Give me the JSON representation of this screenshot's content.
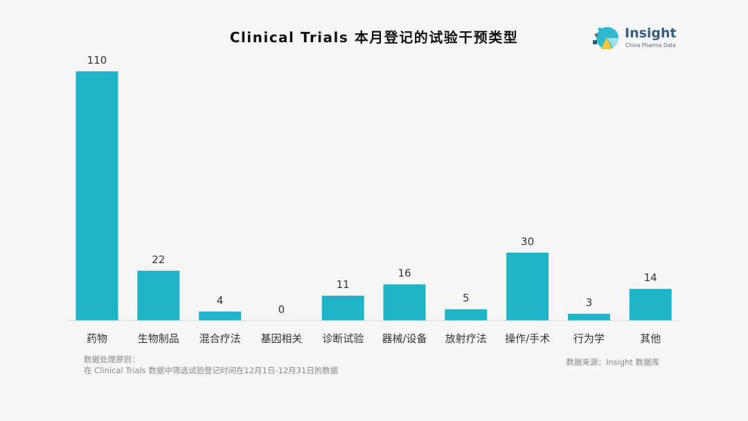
{
  "chart_data": {
    "type": "bar",
    "title": "Clinical Trials 本月登记的试验干预类型",
    "categories": [
      "药物",
      "生物制品",
      "混合疗法",
      "基因相关",
      "诊断试验",
      "器械/设备",
      "放射疗法",
      "操作/手术",
      "行为学",
      "其他"
    ],
    "values": [
      110,
      22,
      4,
      0,
      11,
      16,
      5,
      30,
      3,
      14
    ],
    "xlabel": "",
    "ylabel": "",
    "ylim": [
      0,
      110
    ],
    "grid": false,
    "legend": "none",
    "bar_color": "#1fb5c9"
  },
  "logo": {
    "name": "Insight",
    "subtitle": "China Pharma Data"
  },
  "notes": {
    "line1": "数据处理原则：",
    "line2": "在 Clinical Trials 数据中筛选试验登记时间在12月1日-12月31日的数据"
  },
  "source": "数据来源：Insight 数据库"
}
